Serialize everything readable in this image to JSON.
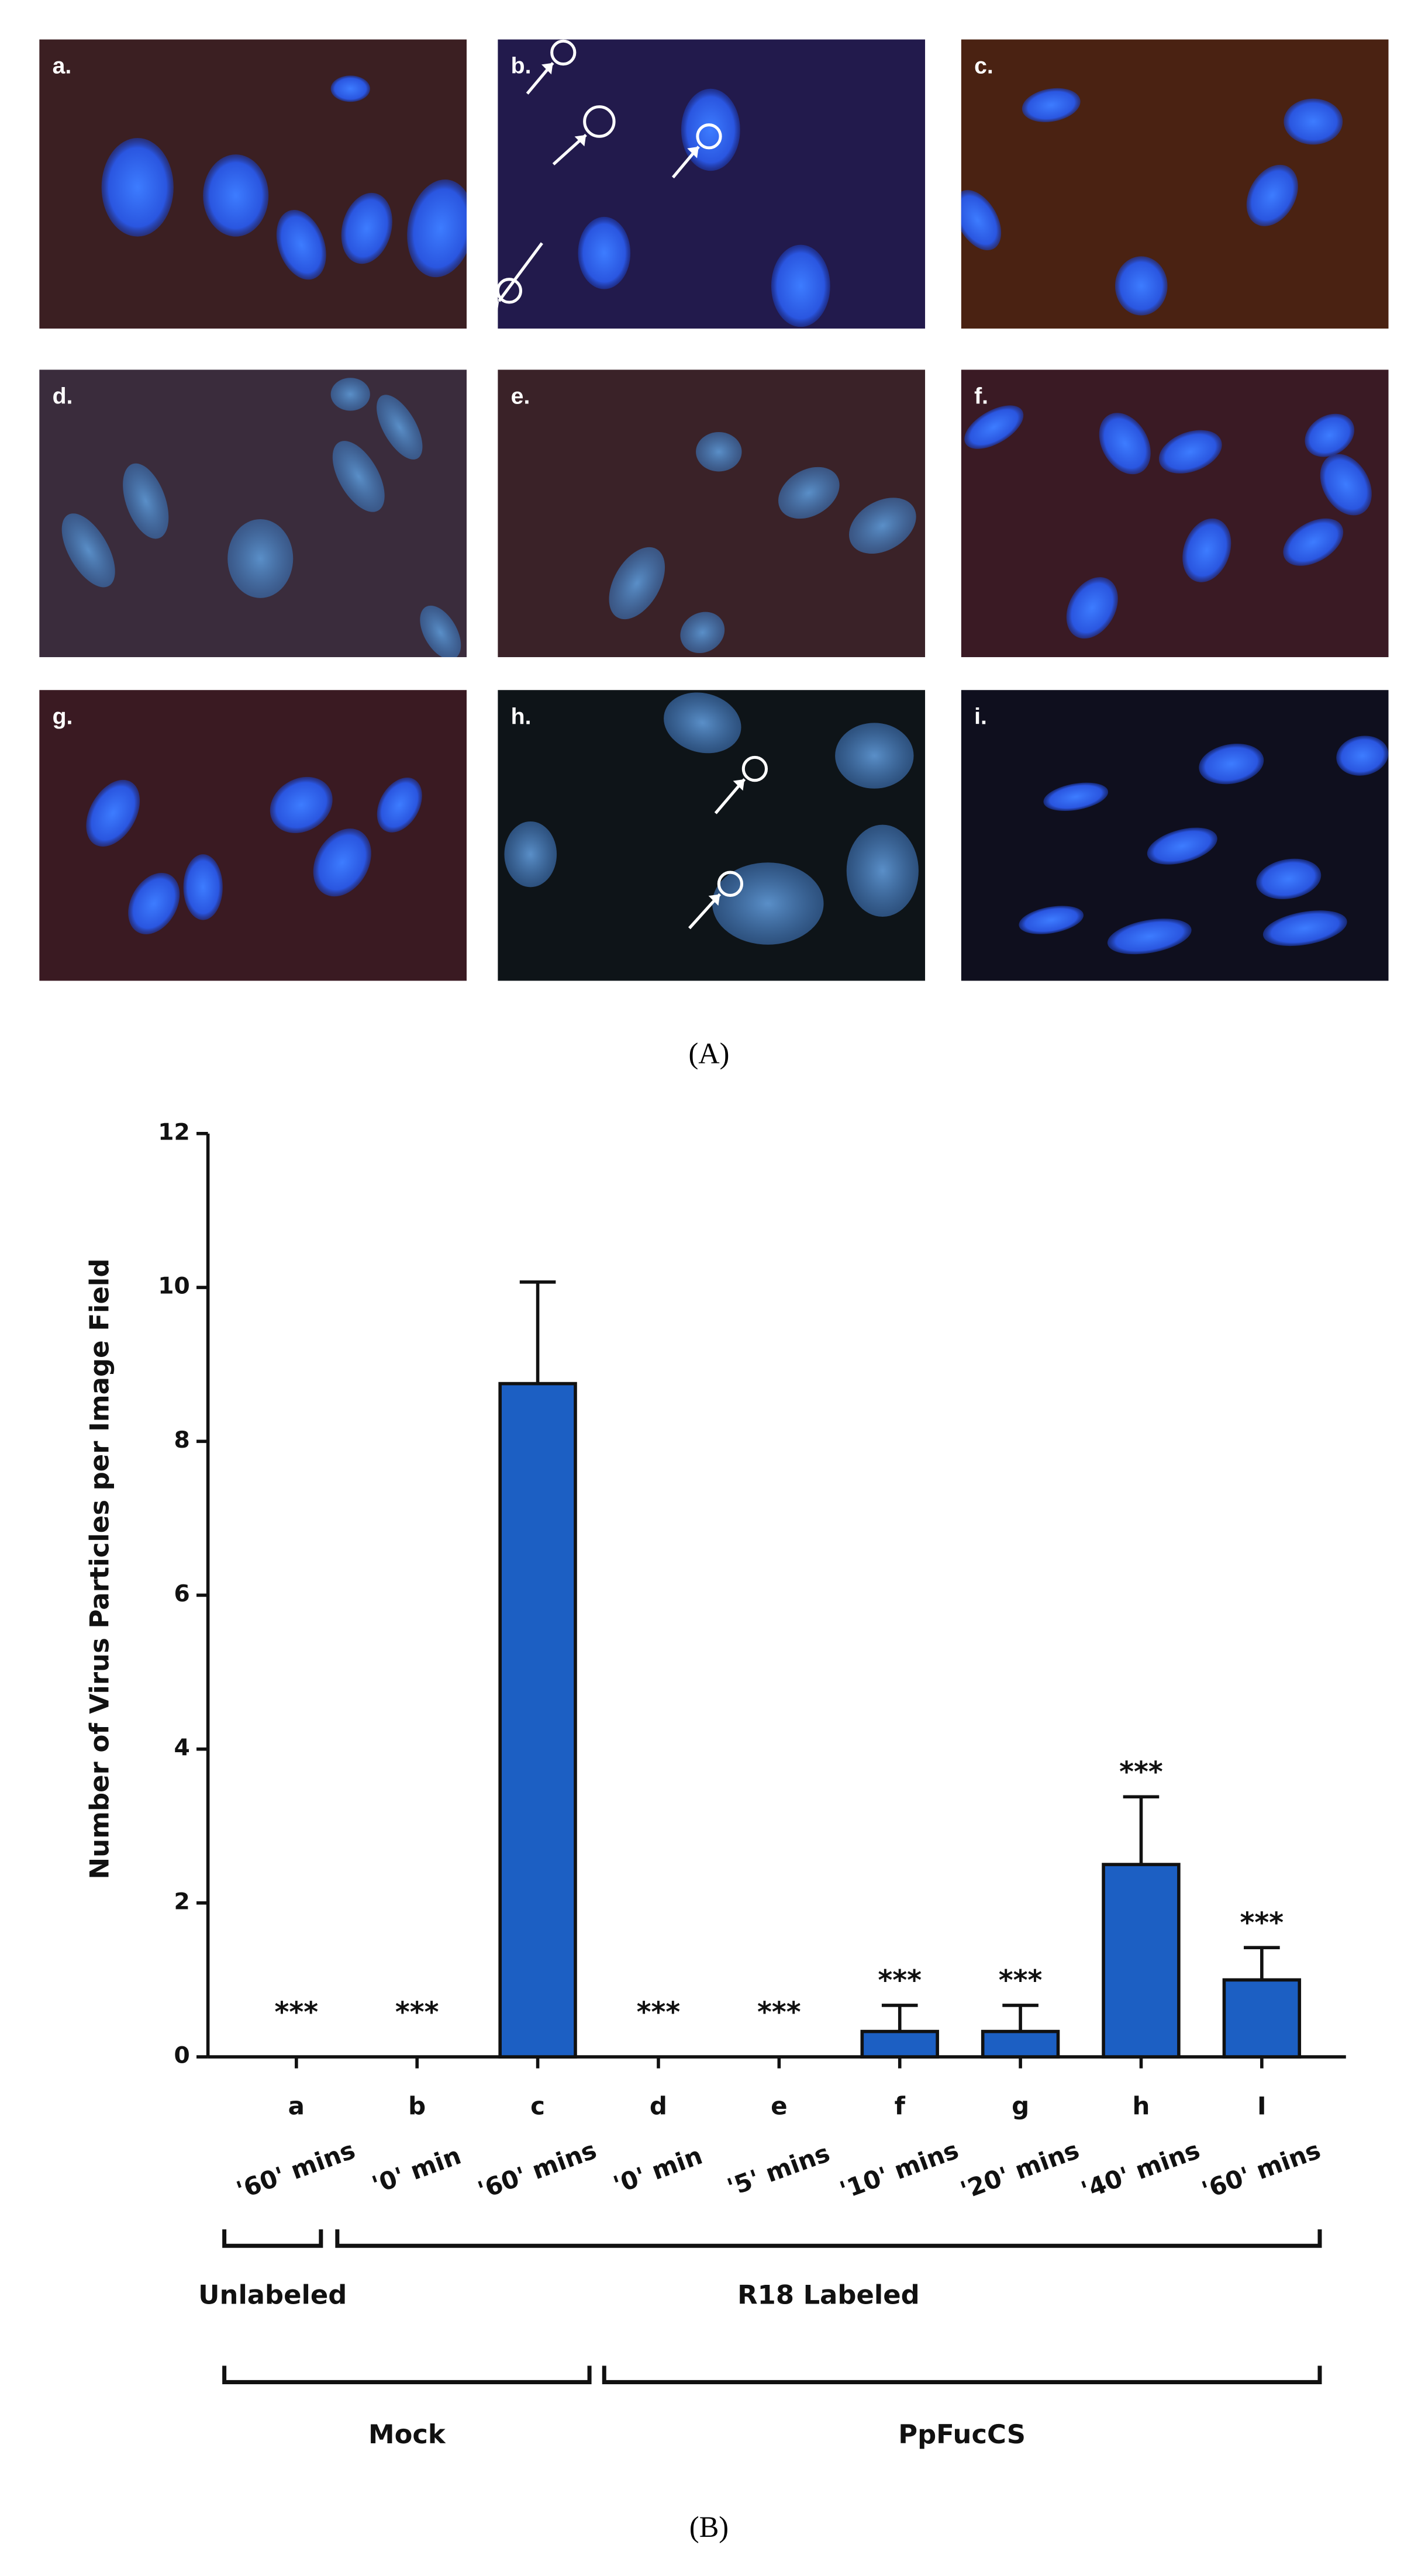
{
  "panels": [
    "a.",
    "b.",
    "c.",
    "d.",
    "e.",
    "f.",
    "g.",
    "h.",
    "i."
  ],
  "part_labels": [
    "(A)",
    "(B)"
  ],
  "chart_data": {
    "type": "bar",
    "y_label": "Number of Virus Particles per Image Field",
    "categories": [
      "a",
      "b",
      "c",
      "d",
      "e",
      "f",
      "g",
      "h",
      "I"
    ],
    "time_labels": [
      "'60' mins",
      "'0' min",
      "'60' mins",
      "'0' min",
      "'5' mins",
      "'10' mins",
      "'20' mins",
      "'40' mins",
      "'60' mins"
    ],
    "values": [
      0,
      0,
      8.75,
      0,
      0,
      0.33,
      0.33,
      2.5,
      1.0
    ],
    "errors": [
      0,
      0,
      1.32,
      0,
      0,
      0.34,
      0.34,
      0.88,
      0.42
    ],
    "significance": [
      "***",
      "***",
      null,
      "***",
      "***",
      "***",
      "***",
      "***",
      "***"
    ],
    "groups_row1": [
      "Unlabeled",
      "R18 Labeled"
    ],
    "groups_row2": [
      "Mock",
      "PpFucCS"
    ],
    "color": "#1c5fc3",
    "ylim": [
      0,
      12
    ],
    "yticks": [
      0,
      2,
      4,
      6,
      8,
      10,
      12
    ]
  }
}
